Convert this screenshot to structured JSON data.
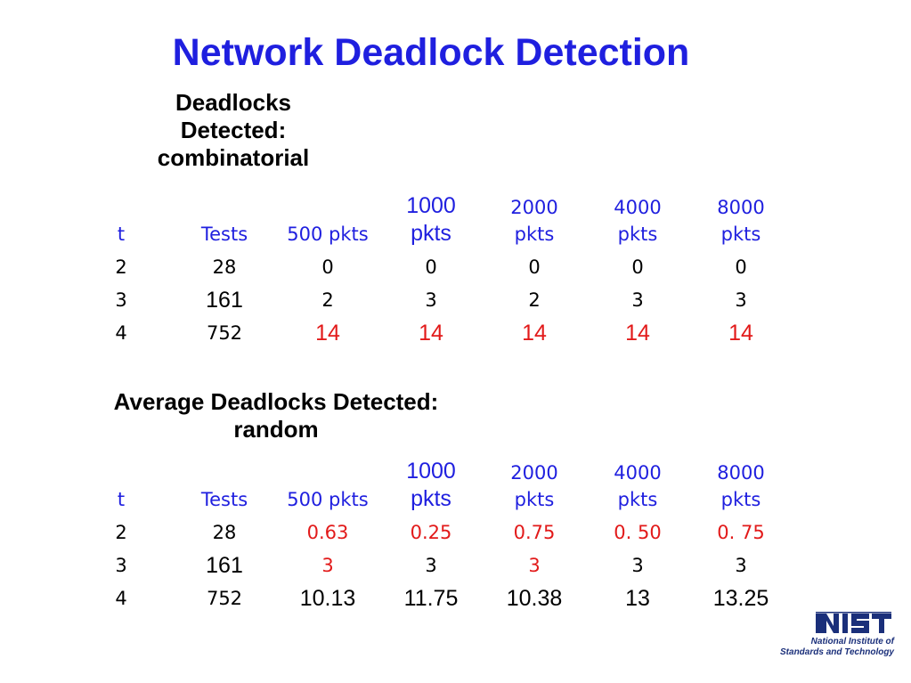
{
  "title": "Network Deadlock Detection",
  "combinatorial": {
    "heading_lines": [
      "Deadlocks",
      "Detected:",
      "combinatorial"
    ],
    "headers": [
      "t",
      "Tests",
      "500 pkts",
      "1000\npkts",
      "2000\npkts",
      "4000\npkts",
      "8000\npkts"
    ],
    "rows": [
      [
        "2",
        "28",
        "0",
        "0",
        "0",
        "0",
        "0"
      ],
      [
        "3",
        "161",
        "2",
        "3",
        "2",
        "3",
        "3"
      ],
      [
        "4",
        "752",
        "14",
        "14",
        "14",
        "14",
        "14"
      ]
    ]
  },
  "random": {
    "heading_lines": [
      "Average Deadlocks Detected:",
      "random"
    ],
    "headers": [
      "t",
      "Tests",
      "500 pkts",
      "1000\npkts",
      "2000\npkts",
      "4000\npkts",
      "8000\npkts"
    ],
    "rows": [
      [
        "2",
        "28",
        "0.63",
        "0.25",
        "0.75",
        "0. 50",
        "0. 75"
      ],
      [
        "3",
        "161",
        "3",
        "3",
        "3",
        "3",
        "3"
      ],
      [
        "4",
        "752",
        "10.13",
        "11.75",
        "10.38",
        "13",
        "13.25"
      ]
    ]
  },
  "logo": {
    "mark": "NIST",
    "caption_lines": [
      "National Institute of",
      "Standards and Technology"
    ]
  },
  "colors": {
    "title": "#1f1fdf",
    "header": "#1f1fdf",
    "highlight": "#e21a1a",
    "logo": "#1a2f7a"
  }
}
